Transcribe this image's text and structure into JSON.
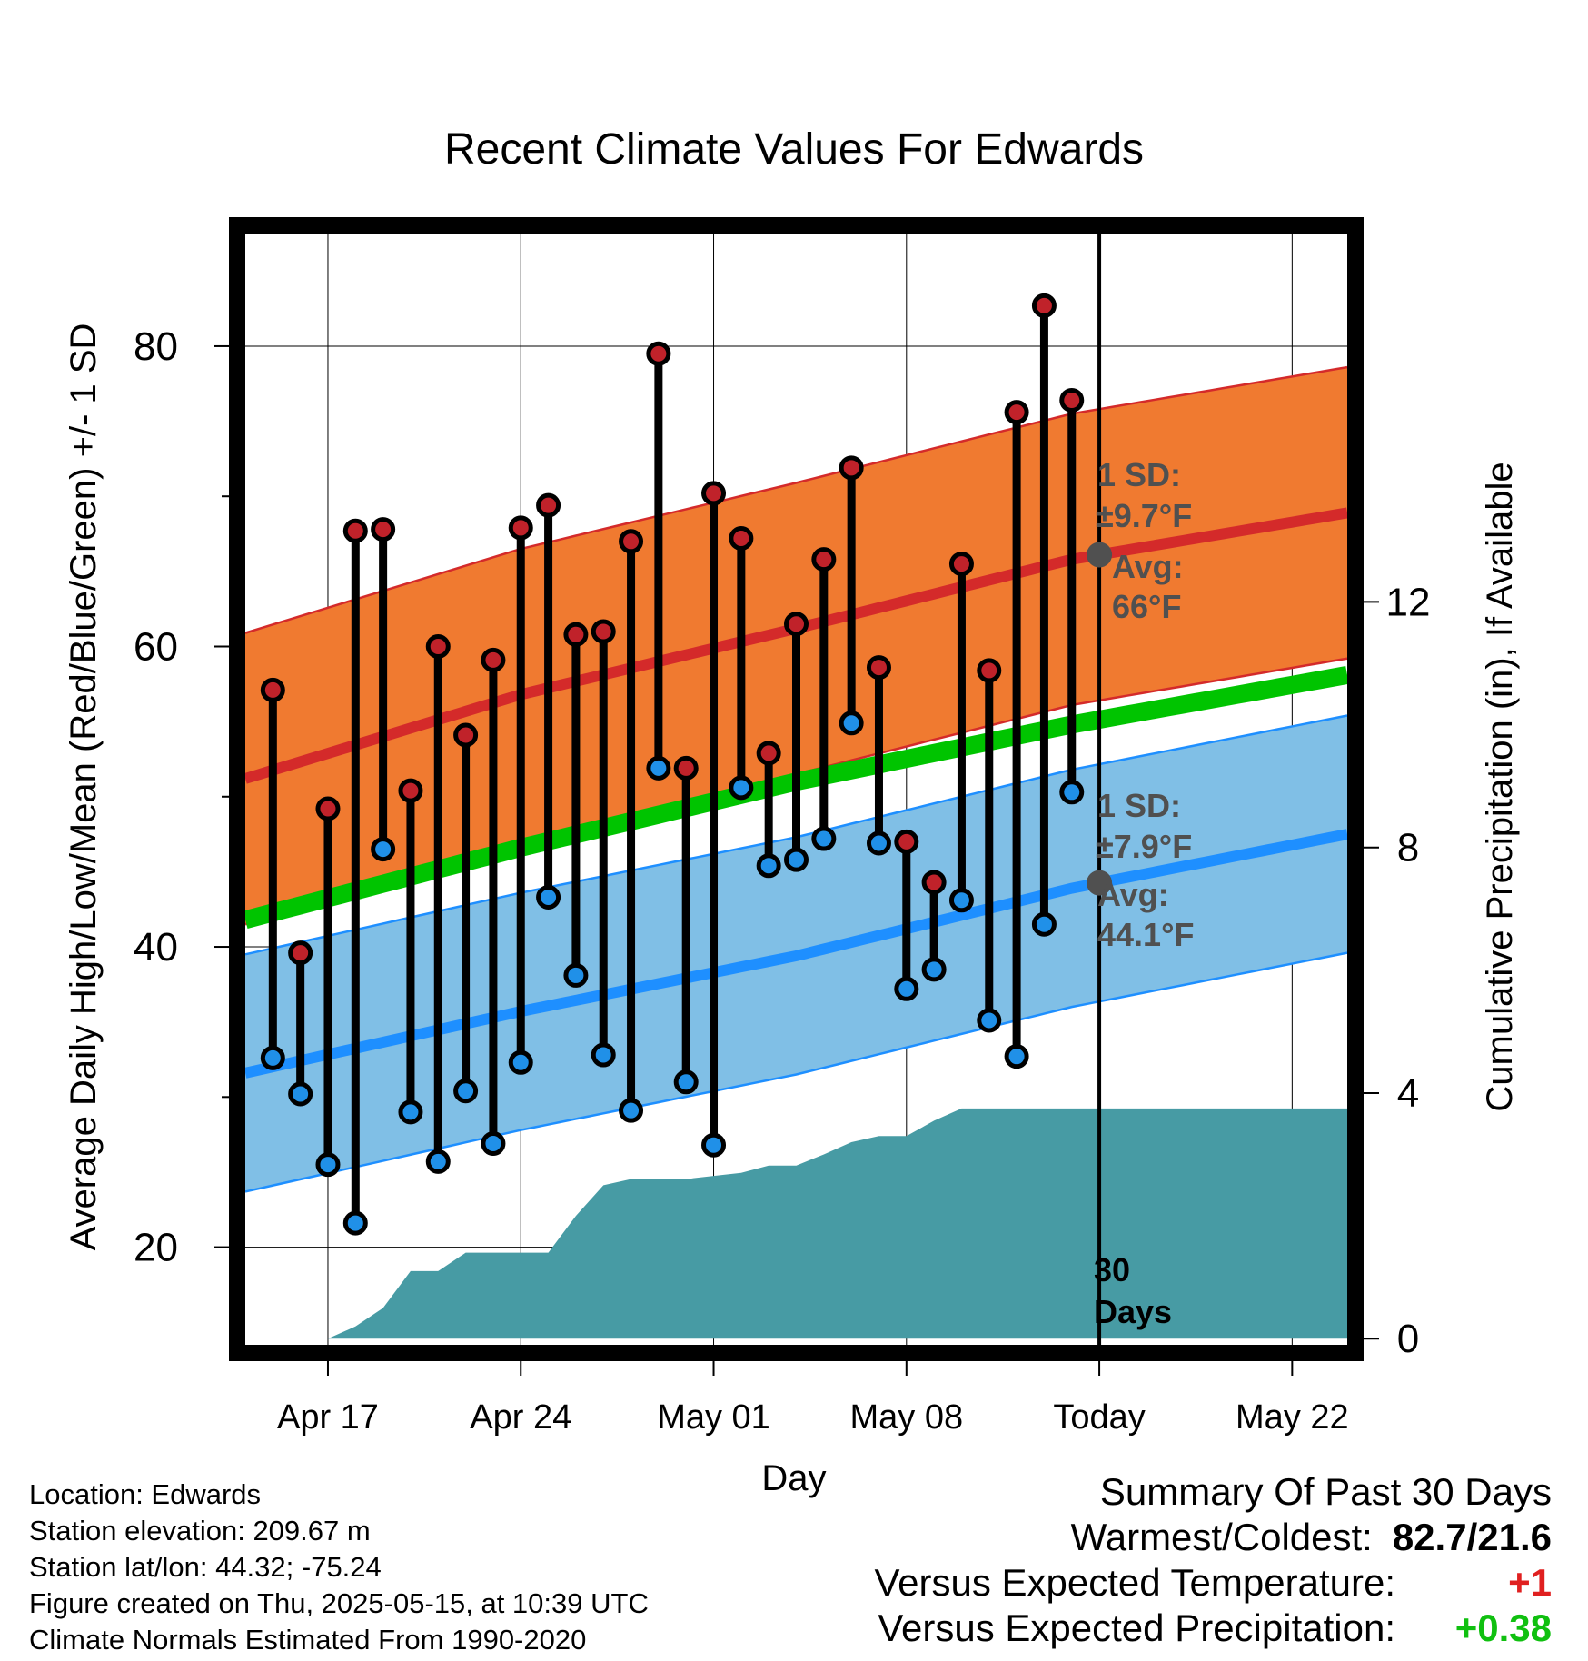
{
  "title": "Recent Climate Values For Edwards",
  "y_left_label": "Average Daily High/Low/Mean (Red/Blue/Green) +/- 1 SD",
  "y_right_label": "Cumulative Precipitation (in), If Available",
  "x_label": "Day",
  "colors": {
    "high_band": "#f07a30",
    "high_line": "#d42a2a",
    "low_band": "#80bfe6",
    "low_line": "#1e8fff",
    "mean_line": "#00c400",
    "precip": "#479ba4",
    "high_marker": "#c0222a",
    "low_marker": "#2090e8",
    "annotation": "#505050",
    "warm": "#e02020",
    "wet": "#10c010"
  },
  "annotations": {
    "high_sd": "1 SD:",
    "high_sd_value": "±9.7°F",
    "high_avg": "Avg:",
    "high_avg_value": "66°F",
    "low_sd": "1 SD:",
    "low_sd_value": "±7.9°F",
    "low_avg": "Avg:",
    "low_avg_value": "44.1°F",
    "days_count": "30",
    "days_word": "Days"
  },
  "footer": {
    "location": "Location: Edwards",
    "elevation": "Station elevation: 209.67 m",
    "latlon": "Station lat/lon: 44.32; -75.24",
    "created": "Figure created on Thu, 2025-05-15, at 10:39 UTC",
    "normals": "Climate Normals Estimated From 1990-2020"
  },
  "summary": {
    "title": "Summary Of Past 30 Days",
    "warm_cold_label": "Warmest/Coldest:",
    "warm_cold_value": "82.7/21.6",
    "temp_label": "Versus Expected Temperature:",
    "temp_value": "+1",
    "precip_label": "Versus Expected Precipitation:",
    "precip_value": "+0.38"
  },
  "chart_data": {
    "type": "line",
    "x_axis": {
      "start": "2025-04-14",
      "end": "2025-05-24",
      "ticks": [
        "2025-04-17",
        "2025-04-24",
        "2025-05-01",
        "2025-05-08",
        "2025-05-15",
        "2025-05-22"
      ],
      "tick_labels": [
        "Apr 17",
        "Apr 24",
        "May 01",
        "May 08",
        "Today",
        "May 22"
      ],
      "today": "2025-05-15"
    },
    "y_left": {
      "min": 13.5,
      "max": 87.5,
      "ticks": [
        20,
        40,
        60,
        80
      ]
    },
    "y_right": {
      "min": -0.1,
      "max": 18,
      "ticks": [
        0,
        4,
        8,
        12
      ]
    },
    "daily": {
      "dates": [
        "2025-04-15",
        "2025-04-16",
        "2025-04-17",
        "2025-04-18",
        "2025-04-19",
        "2025-04-20",
        "2025-04-21",
        "2025-04-22",
        "2025-04-23",
        "2025-04-24",
        "2025-04-25",
        "2025-04-26",
        "2025-04-27",
        "2025-04-28",
        "2025-04-29",
        "2025-04-30",
        "2025-05-01",
        "2025-05-02",
        "2025-05-03",
        "2025-05-04",
        "2025-05-05",
        "2025-05-06",
        "2025-05-07",
        "2025-05-08",
        "2025-05-09",
        "2025-05-10",
        "2025-05-11",
        "2025-05-12",
        "2025-05-13",
        "2025-05-14"
      ],
      "highs": [
        57.1,
        39.6,
        49.2,
        67.7,
        67.8,
        50.4,
        60.0,
        54.1,
        59.1,
        67.9,
        69.4,
        60.8,
        61.0,
        67.0,
        79.5,
        51.9,
        70.2,
        67.2,
        52.9,
        61.5,
        65.8,
        71.9,
        58.6,
        47.0,
        44.3,
        65.5,
        58.4,
        75.6,
        82.7,
        76.4
      ],
      "lows": [
        32.6,
        30.2,
        25.5,
        21.6,
        46.5,
        29.0,
        25.7,
        30.4,
        26.9,
        32.3,
        43.3,
        38.1,
        32.8,
        29.1,
        51.9,
        31.0,
        26.8,
        50.6,
        45.4,
        45.8,
        47.2,
        54.9,
        46.9,
        37.2,
        38.5,
        43.1,
        35.1,
        32.7,
        41.5,
        50.3
      ]
    },
    "normals": {
      "dates": [
        "2025-04-14",
        "2025-04-24",
        "2025-05-04",
        "2025-05-14",
        "2025-05-24"
      ],
      "high_avg": [
        51.2,
        56.8,
        61.2,
        65.8,
        68.9
      ],
      "low_avg": [
        31.6,
        35.7,
        39.4,
        43.9,
        47.5
      ],
      "mean_avg": [
        41.8,
        46.6,
        51.0,
        54.8,
        58.1
      ],
      "high_sd": 9.7,
      "low_sd": 7.9
    },
    "precipitation": {
      "dates": [
        "2025-04-14",
        "2025-04-17",
        "2025-04-18",
        "2025-04-19",
        "2025-04-20",
        "2025-04-21",
        "2025-04-22",
        "2025-04-25",
        "2025-04-26",
        "2025-04-27",
        "2025-04-28",
        "2025-04-30",
        "2025-05-01",
        "2025-05-02",
        "2025-05-03",
        "2025-05-04",
        "2025-05-05",
        "2025-05-06",
        "2025-05-07",
        "2025-05-08",
        "2025-05-09",
        "2025-05-10",
        "2025-05-14",
        "2025-05-24"
      ],
      "cumulative": [
        0,
        0,
        0.2,
        0.5,
        1.1,
        1.1,
        1.4,
        1.4,
        2.0,
        2.5,
        2.6,
        2.6,
        2.65,
        2.7,
        2.82,
        2.82,
        3.0,
        3.2,
        3.3,
        3.3,
        3.55,
        3.75,
        3.75,
        3.75
      ]
    }
  }
}
